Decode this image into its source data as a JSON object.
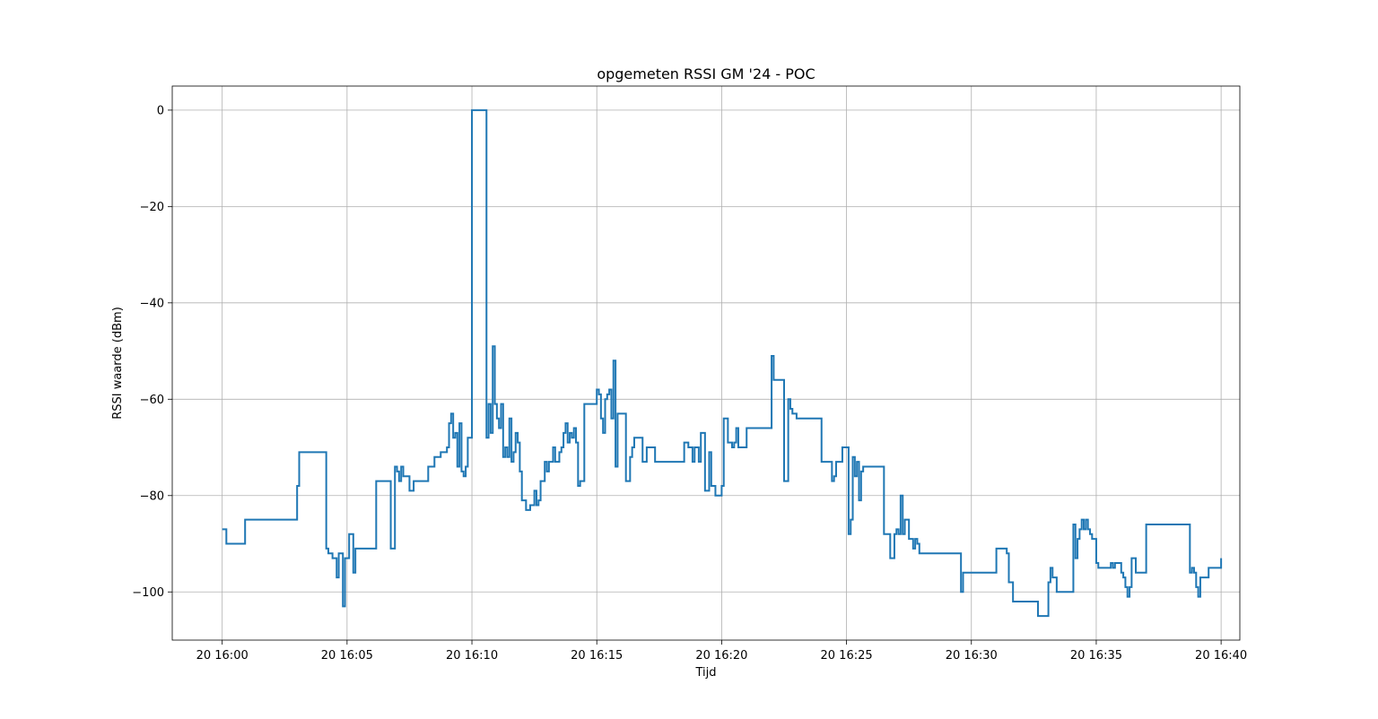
{
  "chart_data": {
    "type": "line",
    "title": "opgemeten RSSI GM '24 - POC",
    "xlabel": "Tijd",
    "ylabel": "RSSI waarde (dBm)",
    "xlim": [
      "2024-06-20 15:58:00",
      "2024-06-20 16:40:45"
    ],
    "ylim": [
      -110,
      5
    ],
    "x_ticks": [
      {
        "value": "2024-06-20 16:00:00",
        "label": "20 16:00"
      },
      {
        "value": "2024-06-20 16:05:00",
        "label": "20 16:05"
      },
      {
        "value": "2024-06-20 16:10:00",
        "label": "20 16:10"
      },
      {
        "value": "2024-06-20 16:15:00",
        "label": "20 16:15"
      },
      {
        "value": "2024-06-20 16:20:00",
        "label": "20 16:20"
      },
      {
        "value": "2024-06-20 16:25:00",
        "label": "20 16:25"
      },
      {
        "value": "2024-06-20 16:30:00",
        "label": "20 16:30"
      },
      {
        "value": "2024-06-20 16:35:00",
        "label": "20 16:35"
      },
      {
        "value": "2024-06-20 16:40:00",
        "label": "20 16:40"
      }
    ],
    "y_ticks": [
      {
        "value": 0,
        "label": "0"
      },
      {
        "value": -20,
        "label": "−20"
      },
      {
        "value": -40,
        "label": "−40"
      },
      {
        "value": -60,
        "label": "−60"
      },
      {
        "value": -80,
        "label": "−80"
      },
      {
        "value": -100,
        "label": "−100"
      }
    ],
    "grid": true,
    "color": "#1f77b4",
    "step": "post",
    "x": [
      "16:00:00",
      "16:00:10",
      "16:00:55",
      "16:03:00",
      "16:03:05",
      "16:03:10",
      "16:04:10",
      "16:04:15",
      "16:04:25",
      "16:04:35",
      "16:04:40",
      "16:04:50",
      "16:04:55",
      "16:05:05",
      "16:05:15",
      "16:05:20",
      "16:05:30",
      "16:06:00",
      "16:06:10",
      "16:06:30",
      "16:06:45",
      "16:06:55",
      "16:07:00",
      "16:07:05",
      "16:07:10",
      "16:07:15",
      "16:07:30",
      "16:07:40",
      "16:08:00",
      "16:08:15",
      "16:08:30",
      "16:08:45",
      "16:09:00",
      "16:09:05",
      "16:09:10",
      "16:09:15",
      "16:09:20",
      "16:09:25",
      "16:09:30",
      "16:09:35",
      "16:09:40",
      "16:09:45",
      "16:09:50",
      "16:09:55",
      "16:10:00",
      "16:10:35",
      "16:10:40",
      "16:10:45",
      "16:10:50",
      "16:10:55",
      "16:11:00",
      "16:11:05",
      "16:11:10",
      "16:11:15",
      "16:11:20",
      "16:11:25",
      "16:11:30",
      "16:11:35",
      "16:11:40",
      "16:11:45",
      "16:11:50",
      "16:11:55",
      "16:12:00",
      "16:12:10",
      "16:12:20",
      "16:12:30",
      "16:12:35",
      "16:12:40",
      "16:12:45",
      "16:12:55",
      "16:13:00",
      "16:13:05",
      "16:13:15",
      "16:13:20",
      "16:13:30",
      "16:13:35",
      "16:13:40",
      "16:13:45",
      "16:13:50",
      "16:13:55",
      "16:14:00",
      "16:14:05",
      "16:14:10",
      "16:14:15",
      "16:14:20",
      "16:14:25",
      "16:14:30",
      "16:15:00",
      "16:15:05",
      "16:15:10",
      "16:15:15",
      "16:15:20",
      "16:15:25",
      "16:15:30",
      "16:15:35",
      "16:15:40",
      "16:15:45",
      "16:15:50",
      "16:16:00",
      "16:16:10",
      "16:16:20",
      "16:16:25",
      "16:16:30",
      "16:16:40",
      "16:16:50",
      "16:17:00",
      "16:17:10",
      "16:17:20",
      "16:18:00",
      "16:18:10",
      "16:18:30",
      "16:18:40",
      "16:18:45",
      "16:18:50",
      "16:18:55",
      "16:19:00",
      "16:19:05",
      "16:19:10",
      "16:19:20",
      "16:19:30",
      "16:19:35",
      "16:19:45",
      "16:20:00",
      "16:20:05",
      "16:20:15",
      "16:20:20",
      "16:20:25",
      "16:20:30",
      "16:20:35",
      "16:20:40",
      "16:21:00",
      "16:21:40",
      "16:21:45",
      "16:22:00",
      "16:22:05",
      "16:22:20",
      "16:22:30",
      "16:22:40",
      "16:22:45",
      "16:22:50",
      "16:23:00",
      "16:23:10",
      "16:24:00",
      "16:24:20",
      "16:24:25",
      "16:24:30",
      "16:24:35",
      "16:24:50",
      "16:25:00",
      "16:25:05",
      "16:25:10",
      "16:25:15",
      "16:25:20",
      "16:25:25",
      "16:25:30",
      "16:25:35",
      "16:25:40",
      "16:25:50",
      "16:26:30",
      "16:26:45",
      "16:26:55",
      "16:27:00",
      "16:27:05",
      "16:27:10",
      "16:27:15",
      "16:27:20",
      "16:27:25",
      "16:27:30",
      "16:27:35",
      "16:27:40",
      "16:27:45",
      "16:27:50",
      "16:27:55",
      "16:28:00",
      "16:28:10",
      "16:29:30",
      "16:29:35",
      "16:29:40",
      "16:30:25",
      "16:31:00",
      "16:31:15",
      "16:31:20",
      "16:31:25",
      "16:31:30",
      "16:31:40",
      "16:31:50",
      "16:32:30",
      "16:32:40",
      "16:33:00",
      "16:33:05",
      "16:33:10",
      "16:33:15",
      "16:33:20",
      "16:33:25",
      "16:34:00",
      "16:34:05",
      "16:34:10",
      "16:34:15",
      "16:34:20",
      "16:34:25",
      "16:34:30",
      "16:34:35",
      "16:34:40",
      "16:34:45",
      "16:34:50",
      "16:35:00",
      "16:35:05",
      "16:35:10",
      "16:35:35",
      "16:35:40",
      "16:35:45",
      "16:36:00",
      "16:36:05",
      "16:36:10",
      "16:36:15",
      "16:36:20",
      "16:36:25",
      "16:36:35",
      "16:36:40",
      "16:37:00",
      "16:38:40",
      "16:38:45",
      "16:38:50",
      "16:38:55",
      "16:39:00",
      "16:39:05",
      "16:39:10",
      "16:39:15",
      "16:39:30",
      "16:39:55",
      "16:40:00"
    ],
    "values": [
      -87,
      -90,
      -85,
      -78,
      -71,
      -71,
      -91,
      -92,
      -93,
      -97,
      -92,
      -103,
      -93,
      -88,
      -96,
      -91,
      -91,
      -91,
      -77,
      -77,
      -91,
      -74,
      -75,
      -77,
      -74,
      -76,
      -79,
      -77,
      -77,
      -74,
      -72,
      -71,
      -70,
      -65,
      -63,
      -68,
      -67,
      -74,
      -65,
      -75,
      -76,
      -74,
      -68,
      -68,
      0,
      -68,
      -61,
      -67,
      -49,
      -61,
      -64,
      -66,
      -61,
      -72,
      -70,
      -72,
      -64,
      -73,
      -71,
      -67,
      -69,
      -75,
      -81,
      -83,
      -82,
      -79,
      -82,
      -81,
      -77,
      -73,
      -75,
      -73,
      -70,
      -73,
      -71,
      -70,
      -67,
      -65,
      -69,
      -67,
      -68,
      -66,
      -69,
      -78,
      -77,
      -77,
      -61,
      -58,
      -59,
      -64,
      -67,
      -60,
      -59,
      -58,
      -64,
      -52,
      -74,
      -63,
      -63,
      -77,
      -72,
      -70,
      -68,
      -68,
      -73,
      -70,
      -70,
      -73,
      -73,
      -73,
      -69,
      -70,
      -70,
      -73,
      -70,
      -70,
      -73,
      -67,
      -79,
      -71,
      -78,
      -80,
      -78,
      -64,
      -69,
      -69,
      -70,
      -69,
      -66,
      -70,
      -66,
      -66,
      -66,
      -51,
      -56,
      -56,
      -77,
      -60,
      -62,
      -63,
      -64,
      -64,
      -73,
      -73,
      -77,
      -76,
      -73,
      -70,
      -70,
      -88,
      -85,
      -72,
      -76,
      -73,
      -81,
      -75,
      -74,
      -74,
      -88,
      -93,
      -88,
      -87,
      -88,
      -80,
      -88,
      -85,
      -85,
      -89,
      -89,
      -91,
      -89,
      -90,
      -92,
      -92,
      -92,
      -92,
      -100,
      -96,
      -96,
      -91,
      -91,
      -91,
      -92,
      -98,
      -102,
      -102,
      -102,
      -105,
      -105,
      -98,
      -95,
      -97,
      -97,
      -100,
      -100,
      -86,
      -93,
      -89,
      -87,
      -85,
      -87,
      -85,
      -87,
      -88,
      -89,
      -94,
      -95,
      -95,
      -94,
      -95,
      -94,
      -96,
      -97,
      -99,
      -101,
      -99,
      -93,
      -96,
      -96,
      -86,
      -86,
      -96,
      -95,
      -96,
      -99,
      -101,
      -97,
      -97,
      -95,
      -95,
      -93
    ]
  }
}
